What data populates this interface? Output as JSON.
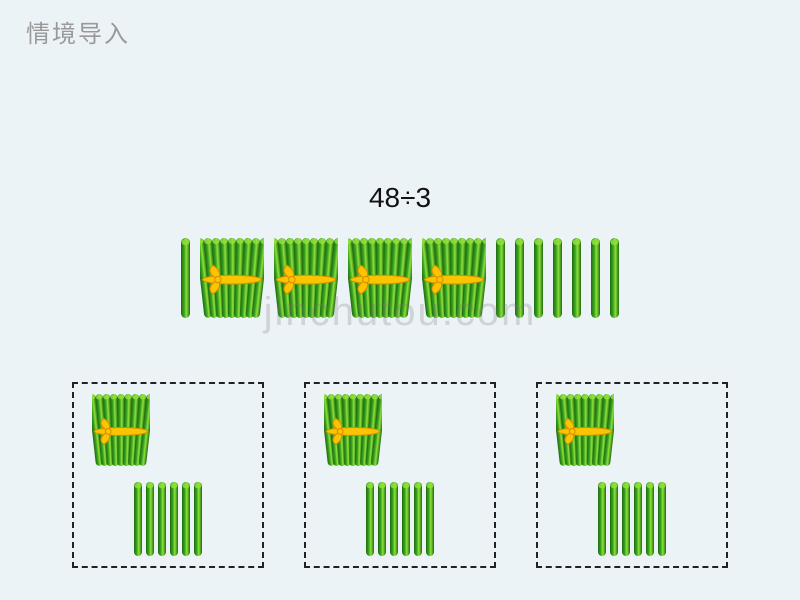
{
  "header": {
    "title": "情境导入"
  },
  "equation": {
    "text": "48÷3"
  },
  "watermark": {
    "text": "jinchutou.com"
  },
  "colors": {
    "background": "#ecf3f7",
    "header_text": "#999999",
    "equation_text": "#111111",
    "watermark_text": "rgba(120,120,120,0.26)",
    "box_border": "#222222",
    "stick_fill": "#3aa520",
    "stick_highlight": "#8fe03a",
    "stick_shadow": "#1d6b0f",
    "ribbon_fill": "#fbc400",
    "ribbon_stroke": "#d88c00"
  },
  "typography": {
    "header_fontsize": 24,
    "equation_fontsize": 28,
    "watermark_fontsize": 40
  },
  "top_row": {
    "pattern": [
      "stick",
      "bundle",
      "bundle",
      "bundle",
      "bundle",
      "stick",
      "stick",
      "stick",
      "stick",
      "stick",
      "stick",
      "stick"
    ],
    "stick_height": 80,
    "bundle_height": 80,
    "gap": 10
  },
  "group_boxes": {
    "count": 3,
    "width": 192,
    "height": 186,
    "gap": 40,
    "border_style": "2px dashed",
    "contents": {
      "bundle_count": 1,
      "loose_stick_count": 6,
      "stick_height": 74,
      "bundle_height": 72
    }
  }
}
